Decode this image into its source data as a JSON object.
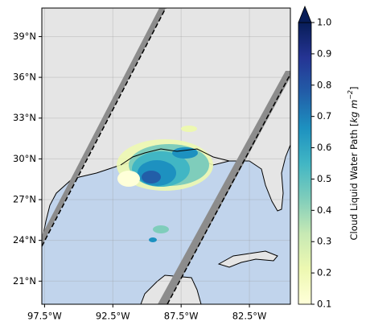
{
  "map": {
    "xlim": [
      -97.7,
      -79.5
    ],
    "ylim": [
      19.3,
      41.1
    ],
    "xticks": [
      {
        "value": -97.5,
        "label": "97.5°W"
      },
      {
        "value": -92.5,
        "label": "92.5°W"
      },
      {
        "value": -87.5,
        "label": "87.5°W"
      },
      {
        "value": -82.5,
        "label": "82.5°W"
      }
    ],
    "yticks": [
      {
        "value": 21,
        "label": "21°N"
      },
      {
        "value": 24,
        "label": "24°N"
      },
      {
        "value": 27,
        "label": "27°N"
      },
      {
        "value": 30,
        "label": "30°N"
      },
      {
        "value": 33,
        "label": "33°N"
      },
      {
        "value": 36,
        "label": "36°N"
      },
      {
        "value": 39,
        "label": "39°N"
      }
    ],
    "grid": true
  },
  "colorbar": {
    "lim": [
      0.1,
      1.0
    ],
    "ticks": [
      0.1,
      0.2,
      0.3,
      0.4,
      0.5,
      0.6,
      0.7,
      0.8,
      0.9,
      1.0
    ],
    "tick_labels": [
      "0.1",
      "0.2",
      "0.3",
      "0.4",
      "0.5",
      "0.6",
      "0.7",
      "0.8",
      "0.9",
      "1.0"
    ],
    "label_prefix": "Cloud Liquid Water Path [",
    "label_unit": "kg m",
    "label_exponent": "−2",
    "label_suffix": "]",
    "colors": [
      "#ffffd9",
      "#edf8b1",
      "#c7e9b4",
      "#7fcdbb",
      "#41b6c4",
      "#1d91c0",
      "#225ea8",
      "#253494",
      "#081d58"
    ]
  }
}
